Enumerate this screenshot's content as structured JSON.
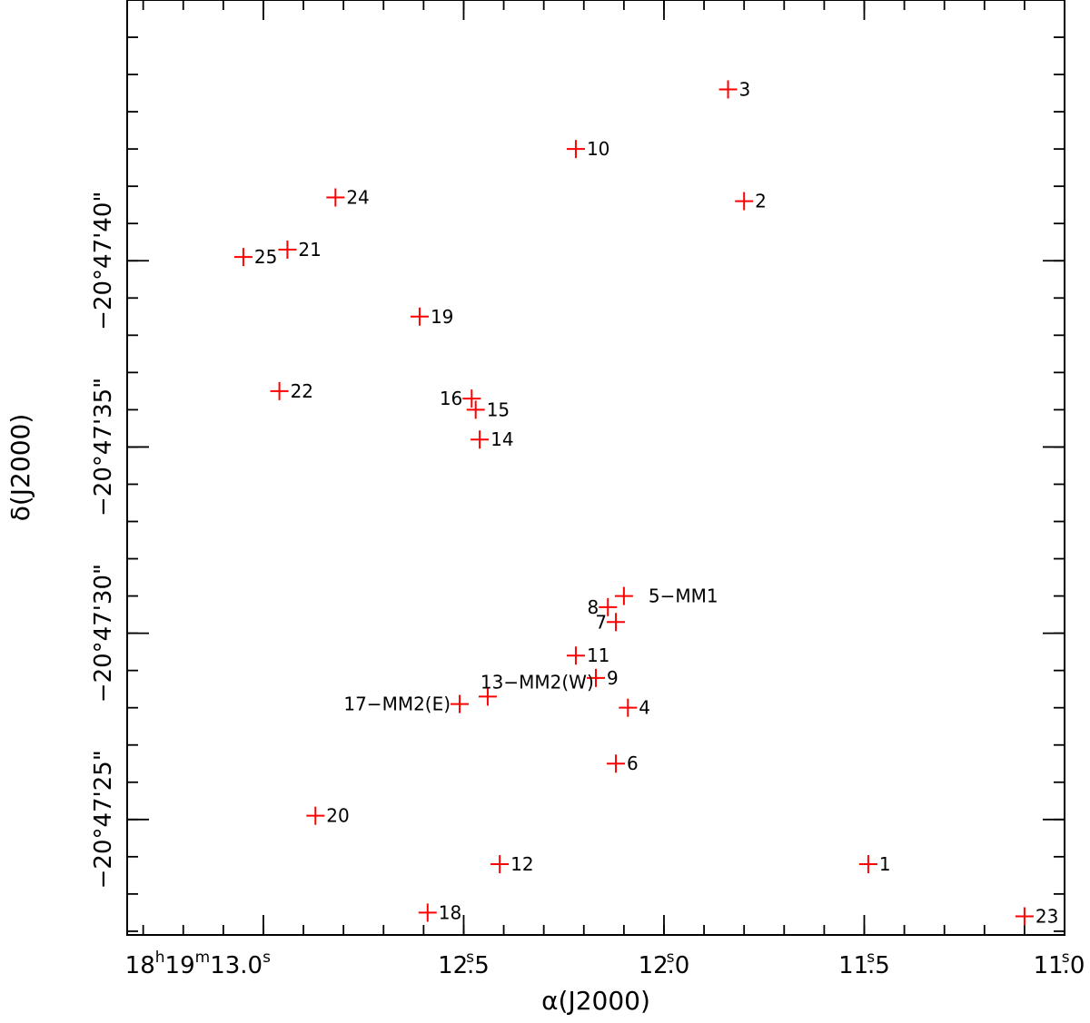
{
  "chart_data": {
    "type": "scatter",
    "xlabel": "α(J2000)",
    "ylabel": "δ(J2000)",
    "x_unit": "seconds of RA at 18h19m",
    "y_unit": "arcseconds of Dec at -20°47'",
    "xlim": [
      13.34,
      11.0
    ],
    "ylim": [
      47.0,
      21.9
    ],
    "x_ticks": [
      {
        "value": 13.0,
        "label": "18h19m13.0s",
        "main": "18",
        "sup1": "h",
        "mid": "19",
        "sup2": "m",
        "tail": "13.0",
        "sup3": "s"
      },
      {
        "value": 12.5,
        "label": "12.5s",
        "main": "12.5",
        "sup": "s"
      },
      {
        "value": 12.0,
        "label": "12.0s",
        "main": "12.0",
        "sup": "s"
      },
      {
        "value": 11.5,
        "label": "11.5s",
        "main": "11.5",
        "sup": "s"
      },
      {
        "value": 11.0,
        "label": "11.0s",
        "main": "11.0",
        "sup": "s"
      }
    ],
    "x_minor_step": 0.1,
    "y_ticks": [
      {
        "value": 25,
        "label": "−20°47'25\""
      },
      {
        "value": 30,
        "label": "−20°47'30\""
      },
      {
        "value": 35,
        "label": "−20°47'35\""
      },
      {
        "value": 40,
        "label": "−20°47'40\""
      }
    ],
    "y_minor_step": 1,
    "marker": "+",
    "marker_color": "#ff0000",
    "points": [
      {
        "label": "1",
        "x": 11.49,
        "y": 23.8,
        "pos": "right"
      },
      {
        "label": "2",
        "x": 11.8,
        "y": 41.6,
        "pos": "right"
      },
      {
        "label": "3",
        "x": 11.84,
        "y": 44.6,
        "pos": "right"
      },
      {
        "label": "4",
        "x": 12.09,
        "y": 28.0,
        "pos": "right"
      },
      {
        "label": "5−MM1",
        "x": 12.1,
        "y": 31.0,
        "pos": "farright"
      },
      {
        "label": "6",
        "x": 12.12,
        "y": 26.5,
        "pos": "right"
      },
      {
        "label": "7",
        "x": 12.12,
        "y": 30.3,
        "pos": "left"
      },
      {
        "label": "8",
        "x": 12.14,
        "y": 30.7,
        "pos": "left"
      },
      {
        "label": "9",
        "x": 12.17,
        "y": 28.8,
        "pos": "right"
      },
      {
        "label": "10",
        "x": 12.22,
        "y": 43.0,
        "pos": "right"
      },
      {
        "label": "11",
        "x": 12.22,
        "y": 29.4,
        "pos": "right"
      },
      {
        "label": "12",
        "x": 12.41,
        "y": 23.8,
        "pos": "right"
      },
      {
        "label": "13−MM2(W)",
        "x": 12.44,
        "y": 28.3,
        "pos": "above"
      },
      {
        "label": "14",
        "x": 12.46,
        "y": 35.2,
        "pos": "right"
      },
      {
        "label": "15",
        "x": 12.47,
        "y": 36.0,
        "pos": "right"
      },
      {
        "label": "16",
        "x": 12.48,
        "y": 36.3,
        "pos": "left"
      },
      {
        "label": "17−MM2(E)",
        "x": 12.51,
        "y": 28.1,
        "pos": "left"
      },
      {
        "label": "18",
        "x": 12.59,
        "y": 22.5,
        "pos": "right"
      },
      {
        "label": "19",
        "x": 12.61,
        "y": 38.5,
        "pos": "right"
      },
      {
        "label": "20",
        "x": 12.87,
        "y": 25.1,
        "pos": "right"
      },
      {
        "label": "21",
        "x": 12.94,
        "y": 40.3,
        "pos": "right"
      },
      {
        "label": "22",
        "x": 12.96,
        "y": 36.5,
        "pos": "right"
      },
      {
        "label": "23",
        "x": 11.1,
        "y": 22.4,
        "pos": "right"
      },
      {
        "label": "24",
        "x": 12.82,
        "y": 41.7,
        "pos": "right"
      },
      {
        "label": "25",
        "x": 13.05,
        "y": 40.1,
        "pos": "right"
      }
    ]
  }
}
